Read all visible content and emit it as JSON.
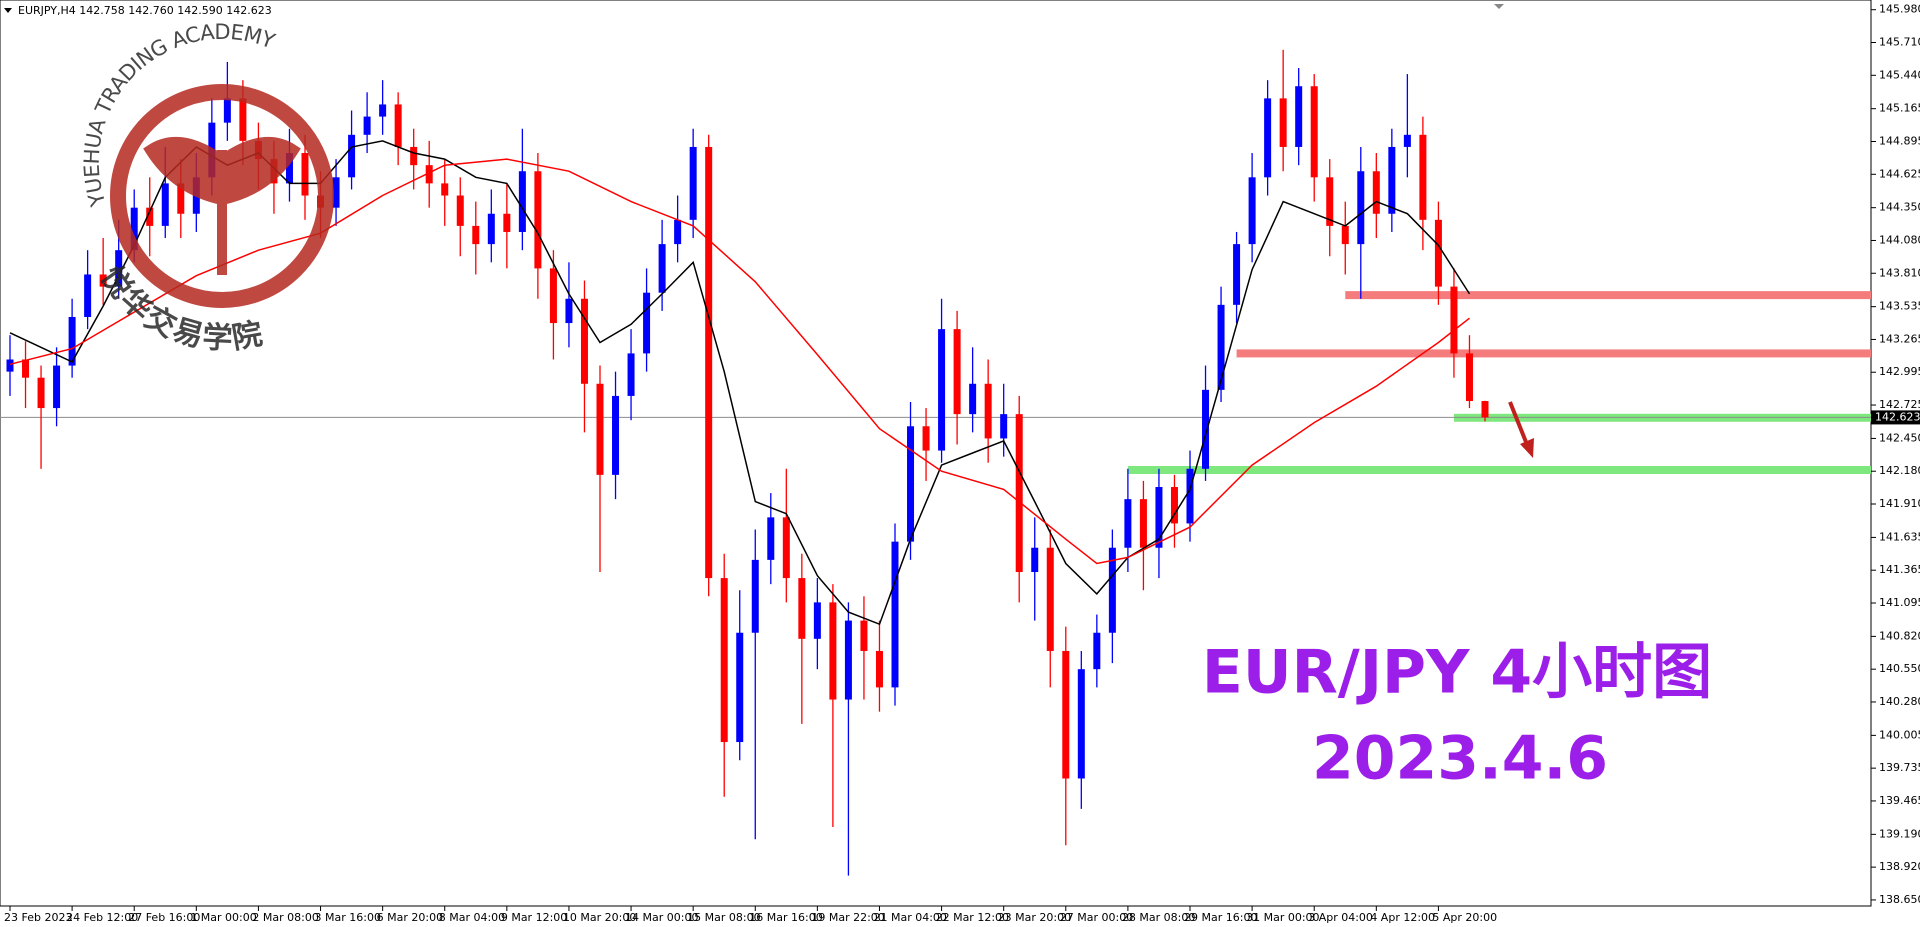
{
  "header": "EURJPY,H4  142.758 142.760 142.590 142.623",
  "logo": {
    "title": "YUEHUA TRADING ACADEMY",
    "subtitle": "悦华交易学院"
  },
  "chart_data": {
    "type": "candlestick",
    "categories": [
      "23 Feb 2023",
      null,
      null,
      null,
      "24 Feb 12:00",
      null,
      null,
      null,
      "27 Feb 16:00",
      null,
      null,
      null,
      "1 Mar 00:00",
      null,
      null,
      null,
      "2 Mar 08:00",
      null,
      null,
      null,
      "3 Mar 16:00",
      null,
      null,
      null,
      "6 Mar 20:00",
      null,
      null,
      null,
      "8 Mar 04:00",
      null,
      null,
      null,
      "9 Mar 12:00",
      null,
      null,
      null,
      "10 Mar 20:00",
      null,
      null,
      null,
      "14 Mar 00:00",
      null,
      null,
      null,
      "15 Mar 08:00",
      null,
      null,
      null,
      "16 Mar 16:00",
      null,
      null,
      null,
      "19 Mar 22:00",
      null,
      null,
      null,
      "21 Mar 04:00",
      null,
      null,
      null,
      "22 Mar 12:00",
      null,
      null,
      null,
      "23 Mar 20:00",
      null,
      null,
      null,
      "27 Mar 00:00",
      null,
      null,
      null,
      "28 Mar 08:00",
      null,
      null,
      null,
      "29 Mar 16:00",
      null,
      null,
      null,
      "31 Mar 00:00",
      null,
      null,
      null,
      "3 Apr 04:00",
      null,
      null,
      null,
      "4 Apr 12:00",
      null,
      null,
      null,
      "5 Apr 20:00",
      null,
      null,
      null
    ],
    "open": [
      143.0,
      143.1,
      142.95,
      142.7,
      143.05,
      143.45,
      143.8,
      143.7,
      144.0,
      144.35,
      144.2,
      144.55,
      144.3,
      144.6,
      145.05,
      145.25,
      144.9,
      144.75,
      144.55,
      144.8,
      144.45,
      144.35,
      144.6,
      144.95,
      145.1,
      145.2,
      144.85,
      144.7,
      144.55,
      144.45,
      144.2,
      144.05,
      144.3,
      144.15,
      144.65,
      143.85,
      143.4,
      143.6,
      142.9,
      142.15,
      142.8,
      143.15,
      143.65,
      144.05,
      144.25,
      144.85,
      141.3,
      139.95,
      140.85,
      141.45,
      141.8,
      141.3,
      140.8,
      141.1,
      140.3,
      140.95,
      140.7,
      140.4,
      141.6,
      142.55,
      142.35,
      143.35,
      142.65,
      142.9,
      142.45,
      142.65,
      141.35,
      141.55,
      140.7,
      139.65,
      140.55,
      140.85,
      141.55,
      141.95,
      141.55,
      142.05,
      141.75,
      142.2,
      142.85,
      143.55,
      144.05,
      144.6,
      145.25,
      144.85,
      145.35,
      144.6,
      144.2,
      144.05,
      144.65,
      144.3,
      144.85,
      144.95,
      144.25,
      143.7,
      143.15,
      142.758
    ],
    "high": [
      143.3,
      143.25,
      143.05,
      143.2,
      143.6,
      144.0,
      144.1,
      144.25,
      144.5,
      144.6,
      144.85,
      144.75,
      144.8,
      145.25,
      145.55,
      145.4,
      145.05,
      144.9,
      145.0,
      144.95,
      144.65,
      144.75,
      145.15,
      145.3,
      145.4,
      145.3,
      145.0,
      144.9,
      144.75,
      144.6,
      144.4,
      144.5,
      144.55,
      145.0,
      144.8,
      144.0,
      143.9,
      143.75,
      143.05,
      143.0,
      143.35,
      143.85,
      144.25,
      144.45,
      145.0,
      144.95,
      141.5,
      141.2,
      141.7,
      142.0,
      142.2,
      141.5,
      141.3,
      141.25,
      141.1,
      141.15,
      140.95,
      141.75,
      142.75,
      142.7,
      143.6,
      143.5,
      143.2,
      143.1,
      142.9,
      142.8,
      141.8,
      141.7,
      140.9,
      140.7,
      141.0,
      141.7,
      142.2,
      142.1,
      142.2,
      142.15,
      142.35,
      143.05,
      143.7,
      144.15,
      144.8,
      145.4,
      145.65,
      145.5,
      145.45,
      144.75,
      144.4,
      144.85,
      144.8,
      145.0,
      145.45,
      145.1,
      144.4,
      143.85,
      143.3,
      142.76
    ],
    "low": [
      142.8,
      142.7,
      142.2,
      142.55,
      142.95,
      143.35,
      143.55,
      143.6,
      143.9,
      143.95,
      144.1,
      144.1,
      144.15,
      144.45,
      144.9,
      144.7,
      144.5,
      144.3,
      144.4,
      144.25,
      144.1,
      144.2,
      144.5,
      144.8,
      144.95,
      144.7,
      144.5,
      144.35,
      144.2,
      143.95,
      143.8,
      143.9,
      143.85,
      144.0,
      143.6,
      143.1,
      143.2,
      142.5,
      141.35,
      141.95,
      142.6,
      143.0,
      143.5,
      143.9,
      144.1,
      141.15,
      139.5,
      139.8,
      139.15,
      141.25,
      141.1,
      140.1,
      140.55,
      139.25,
      138.85,
      140.3,
      140.2,
      140.25,
      141.45,
      142.1,
      142.25,
      142.4,
      142.5,
      142.25,
      142.3,
      141.1,
      140.95,
      140.4,
      139.1,
      139.4,
      140.4,
      140.6,
      141.35,
      141.2,
      141.3,
      141.55,
      141.6,
      142.1,
      142.75,
      143.4,
      143.9,
      144.45,
      144.65,
      144.7,
      144.4,
      143.95,
      143.8,
      143.6,
      144.1,
      144.15,
      144.6,
      144.0,
      143.55,
      142.95,
      142.7,
      142.59
    ],
    "close": [
      143.1,
      142.95,
      142.7,
      143.05,
      143.45,
      143.8,
      143.7,
      144.0,
      144.35,
      144.2,
      144.55,
      144.3,
      144.6,
      145.05,
      145.25,
      144.9,
      144.75,
      144.55,
      144.8,
      144.45,
      144.35,
      144.6,
      144.95,
      145.1,
      145.2,
      144.85,
      144.7,
      144.55,
      144.45,
      144.2,
      144.05,
      144.3,
      144.15,
      144.65,
      143.85,
      143.4,
      143.6,
      142.9,
      142.15,
      142.8,
      143.15,
      143.65,
      144.05,
      144.25,
      144.85,
      141.3,
      139.95,
      140.85,
      141.45,
      141.8,
      141.3,
      140.8,
      141.1,
      140.3,
      140.95,
      140.7,
      140.4,
      141.6,
      142.55,
      142.35,
      143.35,
      142.65,
      142.9,
      142.45,
      142.65,
      141.35,
      141.55,
      140.7,
      139.65,
      140.55,
      140.85,
      141.55,
      141.95,
      141.55,
      142.05,
      141.75,
      142.2,
      142.85,
      143.55,
      144.05,
      144.6,
      145.25,
      144.85,
      145.35,
      144.6,
      144.2,
      144.05,
      144.65,
      144.3,
      144.85,
      144.95,
      144.25,
      143.7,
      143.15,
      142.758,
      142.623
    ],
    "up_color": "#0000ff",
    "down_color": "#ff0000",
    "series": [
      {
        "color": "#000000",
        "x": [
          0,
          4,
          6,
          8,
          10,
          12,
          14,
          16,
          18,
          20,
          22,
          24,
          26,
          28,
          30,
          32,
          34,
          36,
          38,
          40,
          42,
          44,
          46,
          48,
          50,
          52,
          54,
          56,
          58,
          60,
          62,
          64,
          66,
          68,
          70,
          72,
          74,
          76,
          78,
          80,
          82,
          84,
          86,
          88,
          90,
          92,
          94
        ],
        "values": [
          143.32,
          143.08,
          143.54,
          144.04,
          144.6,
          144.85,
          144.7,
          144.8,
          144.55,
          144.55,
          144.85,
          144.9,
          144.8,
          144.75,
          144.6,
          144.55,
          144.14,
          143.64,
          143.24,
          143.39,
          143.64,
          143.9,
          143.0,
          141.93,
          141.83,
          141.32,
          141.02,
          140.92,
          141.62,
          142.23,
          142.33,
          142.43,
          141.93,
          141.42,
          141.17,
          141.47,
          141.62,
          142.03,
          142.93,
          143.84,
          144.4,
          144.3,
          144.2,
          144.4,
          144.3,
          144.04,
          143.64
        ]
      },
      {
        "color": "#ff0000",
        "x": [
          0,
          4,
          8,
          12,
          16,
          20,
          24,
          28,
          32,
          36,
          40,
          44,
          48,
          52,
          56,
          60,
          64,
          68,
          70,
          72,
          76,
          80,
          84,
          88,
          92,
          94
        ],
        "values": [
          143.06,
          143.19,
          143.49,
          143.79,
          144.0,
          144.14,
          144.45,
          144.7,
          144.75,
          144.65,
          144.4,
          144.2,
          143.74,
          143.14,
          142.53,
          142.18,
          142.03,
          141.62,
          141.42,
          141.47,
          141.72,
          142.23,
          142.58,
          142.88,
          143.24,
          143.44
        ]
      }
    ],
    "levels": [
      {
        "value": 143.63,
        "color": "#f47c7c",
        "from": 86
      },
      {
        "value": 143.15,
        "color": "#f47c7c",
        "from": 79
      },
      {
        "value": 142.62,
        "color": "#7ee87e",
        "from": 93
      },
      {
        "value": 142.19,
        "color": "#7ee87e",
        "from": 72
      }
    ],
    "price_line": 142.623,
    "ylim": [
      138.6,
      146.06
    ],
    "yticks": [
      {
        "value": 145.98,
        "label": "145.980"
      },
      {
        "value": 145.71,
        "label": "145.710"
      },
      {
        "value": 145.44,
        "label": "145.440"
      },
      {
        "value": 145.165,
        "label": "145.165"
      },
      {
        "value": 144.895,
        "label": "144.895"
      },
      {
        "value": 144.625,
        "label": "144.625"
      },
      {
        "value": 144.35,
        "label": "144.350"
      },
      {
        "value": 144.08,
        "label": "144.080"
      },
      {
        "value": 143.81,
        "label": "143.810"
      },
      {
        "value": 143.535,
        "label": "143.535"
      },
      {
        "value": 143.265,
        "label": "143.265"
      },
      {
        "value": 142.995,
        "label": "142.995"
      },
      {
        "value": 142.725,
        "label": "142.725"
      },
      {
        "value": 142.45,
        "label": "142.450"
      },
      {
        "value": 142.18,
        "label": "142.180"
      },
      {
        "value": 141.91,
        "label": "141.910"
      },
      {
        "value": 141.635,
        "label": "141.635"
      },
      {
        "value": 141.365,
        "label": "141.365"
      },
      {
        "value": 141.095,
        "label": "141.095"
      },
      {
        "value": 140.82,
        "label": "140.820"
      },
      {
        "value": 140.55,
        "label": "140.550"
      },
      {
        "value": 140.28,
        "label": "140.280"
      },
      {
        "value": 140.005,
        "label": "140.005"
      },
      {
        "value": 139.735,
        "label": "139.735"
      },
      {
        "value": 139.465,
        "label": "139.465"
      },
      {
        "value": 139.19,
        "label": "139.190"
      },
      {
        "value": 138.92,
        "label": "138.920"
      },
      {
        "value": 138.65,
        "label": "138.650"
      }
    ],
    "annotations": [
      "EUR/JPY 4小时图",
      "2023.4.6"
    ]
  }
}
